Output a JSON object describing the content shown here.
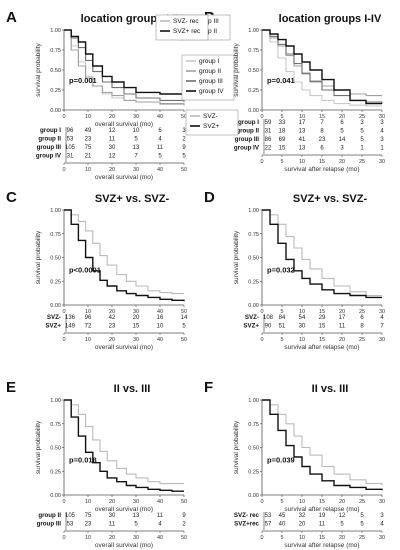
{
  "figure": {
    "panels": [
      {
        "letter": "A",
        "title": "location groups I-IV",
        "ylabel": "survival probability",
        "xlabel": "overall survival (mo)",
        "pvalue": "p=0.001",
        "x_ticks": [
          0,
          10,
          20,
          30,
          40,
          50
        ],
        "y_ticks": [
          "0.00",
          "0.25",
          "0.50",
          "0.75",
          "1.00"
        ],
        "legend": [
          "group I",
          "group II",
          "group III",
          "group IV"
        ],
        "risk_xlabel": "overall survival (mo)",
        "risk_rows": [
          {
            "label": "group I",
            "values": [
              "96",
              "49",
              "12",
              "10",
              "6",
              "3"
            ]
          },
          {
            "label": "group II",
            "values": [
              "53",
              "23",
              "11",
              "5",
              "4",
              "2"
            ]
          },
          {
            "label": "group III",
            "values": [
              "105",
              "75",
              "30",
              "13",
              "11",
              "9"
            ]
          },
          {
            "label": "group IV",
            "values": [
              "31",
              "21",
              "12",
              "7",
              "5",
              "5"
            ]
          }
        ]
      },
      {
        "letter": "B",
        "title": "location groups I-IV",
        "ylabel": "survival probability",
        "xlabel": "",
        "pvalue": "p=0.041",
        "x_ticks": [
          0,
          5,
          10,
          15,
          20,
          25,
          30
        ],
        "y_ticks": [
          "0.00",
          "0.25",
          "0.50",
          "0.75",
          "1.00"
        ],
        "legend": [],
        "risk_xlabel": "survival after relapse (mo)",
        "risk_rows": [
          {
            "label": "group I",
            "values": [
              "59",
              "33",
              "17",
              "7",
              "6",
              "3",
              "3"
            ]
          },
          {
            "label": "group II",
            "values": [
              "31",
              "18",
              "13",
              "8",
              "5",
              "5",
              "4"
            ]
          },
          {
            "label": "group III",
            "values": [
              "86",
              "69",
              "41",
              "23",
              "14",
              "5",
              "3"
            ]
          },
          {
            "label": "group IV",
            "values": [
              "22",
              "15",
              "13",
              "6",
              "3",
              "1",
              "1"
            ]
          }
        ]
      },
      {
        "letter": "C",
        "title": "SVZ+ vs. SVZ-",
        "ylabel": "survival probability",
        "xlabel": "",
        "pvalue": "p<0.0001",
        "x_ticks": [
          0,
          10,
          20,
          30,
          40,
          50
        ],
        "y_ticks": [
          "0.00",
          "0.25",
          "0.50",
          "0.75",
          "1.00"
        ],
        "legend": [
          "SVZ-",
          "SVZ+"
        ],
        "risk_xlabel": "overall survival (mo)",
        "risk_rows": [
          {
            "label": "SVZ-",
            "values": [
              "136",
              "96",
              "42",
              "20",
              "16",
              "14"
            ]
          },
          {
            "label": "SVZ+",
            "values": [
              "149",
              "72",
              "23",
              "15",
              "10",
              "5"
            ]
          }
        ]
      },
      {
        "letter": "D",
        "title": "SVZ+ vs. SVZ-",
        "ylabel": "survival probability",
        "xlabel": "",
        "pvalue": "p=0.032",
        "x_ticks": [
          0,
          5,
          10,
          15,
          20,
          25,
          30
        ],
        "y_ticks": [
          "0.00",
          "0.25",
          "0.50",
          "0.75",
          "1.00"
        ],
        "legend": [],
        "risk_xlabel": "survival after relapse (mo)",
        "risk_rows": [
          {
            "label": "SVZ-",
            "values": [
              "108",
              "84",
              "54",
              "29",
              "17",
              "6",
              "4"
            ]
          },
          {
            "label": "SVZ+",
            "values": [
              "90",
              "51",
              "30",
              "15",
              "11",
              "8",
              "7"
            ]
          }
        ]
      },
      {
        "letter": "E",
        "title": "II vs. III",
        "ylabel": "survival probability",
        "xlabel": "overall survival (mo)",
        "pvalue": "p=0.018",
        "x_ticks": [
          0,
          10,
          20,
          30,
          40,
          50
        ],
        "y_ticks": [
          "0.00",
          "0.25",
          "0.50",
          "0.75",
          "1.00"
        ],
        "legend": [
          "group III",
          "group II"
        ],
        "risk_xlabel": "overall survival (mo)",
        "risk_rows": [
          {
            "label": "group II",
            "values": [
              "105",
              "75",
              "30",
              "13",
              "11",
              "9"
            ]
          },
          {
            "label": "group III",
            "values": [
              "53",
              "23",
              "11",
              "5",
              "4",
              "2"
            ]
          }
        ]
      },
      {
        "letter": "F",
        "title": "II vs. III",
        "ylabel": "survival probability",
        "xlabel": "survival after relapse (mo)",
        "pvalue": "p=0.039",
        "x_ticks": [
          0,
          5,
          10,
          15,
          20,
          25,
          30
        ],
        "y_ticks": [
          "0.00",
          "0.25",
          "0.50",
          "0.75",
          "1.00"
        ],
        "legend": [
          "SVZ-  rec",
          "SVZ+ rec"
        ],
        "risk_xlabel": "survival after relapse (mo)",
        "risk_rows": [
          {
            "label": "SVZ- rec",
            "values": [
              "53",
              "45",
              "32",
              "19",
              "12",
              "5",
              "3"
            ]
          },
          {
            "label": "SVZ+rec",
            "values": [
              "57",
              "40",
              "20",
              "11",
              "5",
              "5",
              "4"
            ]
          }
        ]
      }
    ]
  },
  "chart_data": [
    {
      "type": "line",
      "panel": "A",
      "xlim": [
        0,
        50
      ],
      "ylim": [
        0,
        1
      ],
      "series": [
        {
          "name": "group I",
          "color": "#c8c8c8",
          "x": [
            0,
            3,
            6,
            9,
            12,
            16,
            20,
            25,
            30,
            40,
            50
          ],
          "y": [
            1.0,
            0.8,
            0.6,
            0.42,
            0.3,
            0.2,
            0.15,
            0.12,
            0.1,
            0.07,
            0.05
          ]
        },
        {
          "name": "group II",
          "color": "#a0a0a0",
          "x": [
            0,
            3,
            6,
            9,
            12,
            16,
            20,
            25,
            30,
            40,
            50
          ],
          "y": [
            1.0,
            0.75,
            0.55,
            0.4,
            0.3,
            0.22,
            0.18,
            0.12,
            0.1,
            0.08,
            0.06
          ]
        },
        {
          "name": "group III",
          "color": "#707070",
          "x": [
            0,
            3,
            6,
            9,
            12,
            16,
            20,
            25,
            30,
            40,
            50
          ],
          "y": [
            1.0,
            0.9,
            0.78,
            0.62,
            0.48,
            0.35,
            0.28,
            0.2,
            0.15,
            0.12,
            0.1
          ]
        },
        {
          "name": "group IV",
          "color": "#111111",
          "x": [
            0,
            3,
            6,
            9,
            12,
            16,
            20,
            25,
            30,
            40,
            50
          ],
          "y": [
            1.0,
            0.92,
            0.85,
            0.7,
            0.55,
            0.42,
            0.35,
            0.28,
            0.22,
            0.2,
            0.2
          ]
        }
      ]
    },
    {
      "type": "line",
      "panel": "B",
      "xlim": [
        0,
        30
      ],
      "ylim": [
        0,
        1
      ],
      "series": [
        {
          "color": "#c8c8c8",
          "x": [
            0,
            2,
            4,
            6,
            8,
            10,
            12,
            15,
            18,
            22,
            26,
            30
          ],
          "y": [
            1.0,
            0.85,
            0.65,
            0.48,
            0.35,
            0.25,
            0.18,
            0.12,
            0.08,
            0.06,
            0.05,
            0.05
          ]
        },
        {
          "color": "#a0a0a0",
          "x": [
            0,
            2,
            4,
            6,
            8,
            10,
            12,
            15,
            18,
            22,
            26,
            30
          ],
          "y": [
            1.0,
            0.9,
            0.8,
            0.68,
            0.55,
            0.45,
            0.35,
            0.3,
            0.25,
            0.2,
            0.18,
            0.18
          ]
        },
        {
          "color": "#707070",
          "x": [
            0,
            2,
            4,
            6,
            8,
            10,
            12,
            15,
            18,
            22,
            26,
            30
          ],
          "y": [
            1.0,
            0.92,
            0.82,
            0.7,
            0.58,
            0.46,
            0.36,
            0.25,
            0.18,
            0.12,
            0.1,
            0.08
          ]
        },
        {
          "color": "#111111",
          "x": [
            0,
            2,
            4,
            6,
            8,
            10,
            12,
            15,
            18,
            22,
            26,
            30
          ],
          "y": [
            1.0,
            0.95,
            0.88,
            0.8,
            0.7,
            0.6,
            0.5,
            0.38,
            0.25,
            0.12,
            0.08,
            0.08
          ]
        }
      ]
    },
    {
      "type": "line",
      "panel": "C",
      "xlim": [
        0,
        50
      ],
      "ylim": [
        0,
        1
      ],
      "series": [
        {
          "name": "SVZ-",
          "color": "#bbbbbb",
          "x": [
            0,
            3,
            6,
            9,
            12,
            15,
            18,
            22,
            26,
            30,
            35,
            40,
            45,
            50
          ],
          "y": [
            1.0,
            0.95,
            0.88,
            0.78,
            0.65,
            0.52,
            0.42,
            0.32,
            0.25,
            0.2,
            0.15,
            0.13,
            0.12,
            0.12
          ]
        },
        {
          "name": "SVZ+",
          "color": "#111111",
          "x": [
            0,
            3,
            6,
            9,
            12,
            15,
            18,
            22,
            26,
            30,
            35,
            40,
            45,
            50
          ],
          "y": [
            1.0,
            0.85,
            0.68,
            0.5,
            0.36,
            0.26,
            0.2,
            0.15,
            0.12,
            0.1,
            0.08,
            0.06,
            0.05,
            0.04
          ]
        }
      ]
    },
    {
      "type": "line",
      "panel": "D",
      "xlim": [
        0,
        30
      ],
      "ylim": [
        0,
        1
      ],
      "series": [
        {
          "color": "#bbbbbb",
          "x": [
            0,
            2,
            4,
            6,
            8,
            10,
            12,
            15,
            18,
            22,
            26,
            30
          ],
          "y": [
            1.0,
            0.95,
            0.85,
            0.72,
            0.6,
            0.48,
            0.38,
            0.28,
            0.2,
            0.14,
            0.1,
            0.1
          ]
        },
        {
          "color": "#111111",
          "x": [
            0,
            2,
            4,
            6,
            8,
            10,
            12,
            15,
            18,
            22,
            26,
            30
          ],
          "y": [
            1.0,
            0.85,
            0.65,
            0.48,
            0.36,
            0.28,
            0.22,
            0.16,
            0.12,
            0.1,
            0.08,
            0.08
          ]
        }
      ]
    },
    {
      "type": "line",
      "panel": "E",
      "xlim": [
        0,
        50
      ],
      "ylim": [
        0,
        1
      ],
      "series": [
        {
          "name": "group III",
          "color": "#bbbbbb",
          "x": [
            0,
            3,
            6,
            9,
            12,
            15,
            18,
            22,
            26,
            30,
            35,
            40,
            45,
            50
          ],
          "y": [
            1.0,
            0.95,
            0.85,
            0.72,
            0.58,
            0.46,
            0.36,
            0.28,
            0.22,
            0.18,
            0.14,
            0.12,
            0.12,
            0.12
          ]
        },
        {
          "name": "group II",
          "color": "#111111",
          "x": [
            0,
            3,
            6,
            9,
            12,
            15,
            18,
            22,
            26,
            30,
            35,
            40,
            45,
            50
          ],
          "y": [
            1.0,
            0.82,
            0.62,
            0.45,
            0.34,
            0.25,
            0.18,
            0.14,
            0.1,
            0.08,
            0.06,
            0.05,
            0.04,
            0.04
          ]
        }
      ]
    },
    {
      "type": "line",
      "panel": "F",
      "xlim": [
        0,
        30
      ],
      "ylim": [
        0,
        1
      ],
      "series": [
        {
          "name": "SVZ-  rec",
          "color": "#bbbbbb",
          "x": [
            0,
            2,
            4,
            6,
            8,
            10,
            12,
            15,
            18,
            22,
            26,
            30
          ],
          "y": [
            1.0,
            0.95,
            0.85,
            0.75,
            0.62,
            0.5,
            0.42,
            0.3,
            0.22,
            0.16,
            0.12,
            0.1
          ]
        },
        {
          "name": "SVZ+ rec",
          "color": "#111111",
          "x": [
            0,
            2,
            4,
            6,
            8,
            10,
            12,
            15,
            18,
            22,
            26,
            30
          ],
          "y": [
            1.0,
            0.85,
            0.68,
            0.52,
            0.4,
            0.3,
            0.22,
            0.15,
            0.1,
            0.08,
            0.06,
            0.05
          ]
        }
      ]
    }
  ]
}
